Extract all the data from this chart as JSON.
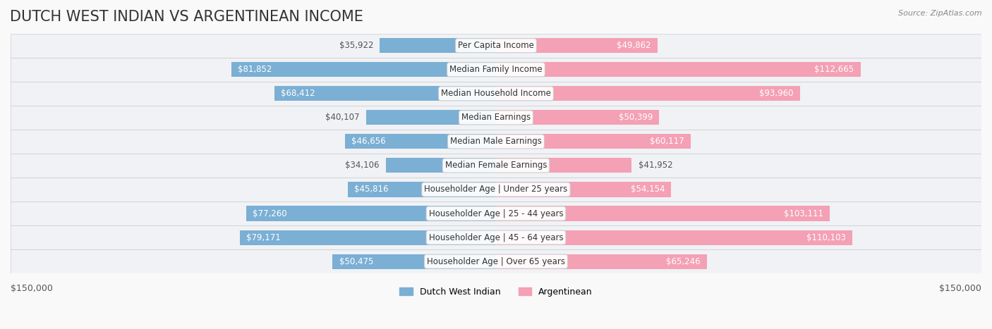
{
  "title": "DUTCH WEST INDIAN VS ARGENTINEAN INCOME",
  "source": "Source: ZipAtlas.com",
  "categories": [
    "Per Capita Income",
    "Median Family Income",
    "Median Household Income",
    "Median Earnings",
    "Median Male Earnings",
    "Median Female Earnings",
    "Householder Age | Under 25 years",
    "Householder Age | 25 - 44 years",
    "Householder Age | 45 - 64 years",
    "Householder Age | Over 65 years"
  ],
  "left_values": [
    35922,
    81852,
    68412,
    40107,
    46656,
    34106,
    45816,
    77260,
    79171,
    50475
  ],
  "right_values": [
    49862,
    112665,
    93960,
    50399,
    60117,
    41952,
    54154,
    103111,
    110103,
    65246
  ],
  "left_labels": [
    "$35,922",
    "$81,852",
    "$68,412",
    "$40,107",
    "$46,656",
    "$34,106",
    "$45,816",
    "$77,260",
    "$79,171",
    "$50,475"
  ],
  "right_labels": [
    "$49,862",
    "$112,665",
    "$93,960",
    "$50,399",
    "$60,117",
    "$41,952",
    "$54,154",
    "$103,111",
    "$110,103",
    "$65,246"
  ],
  "left_color": "#7bafd4",
  "left_color_dark": "#5b8fbf",
  "right_color": "#f4a0b5",
  "right_color_dark": "#e8698a",
  "max_val": 150000,
  "bg_color": "#f5f5f5",
  "row_bg_color": "#ffffff",
  "row_alt_bg_color": "#f0f0f0",
  "title_fontsize": 15,
  "label_fontsize": 8.5,
  "legend_label_left": "Dutch West Indian",
  "legend_label_right": "Argentinean",
  "axis_label": "$150,000"
}
